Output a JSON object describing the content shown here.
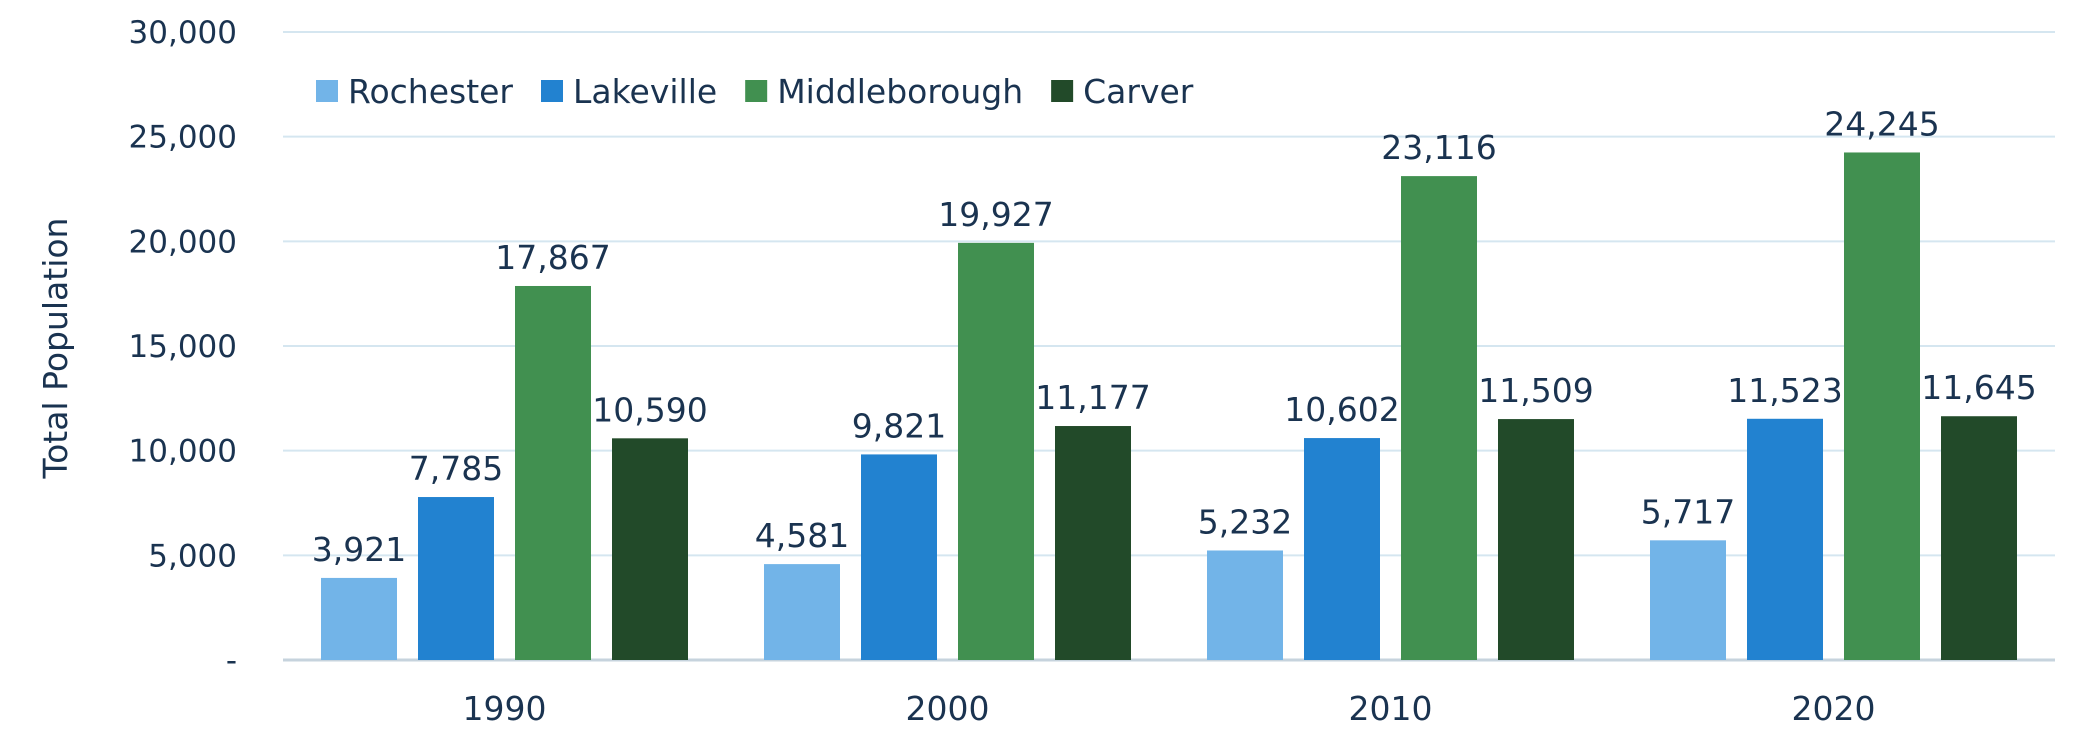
{
  "chart_data": {
    "type": "bar",
    "title": "",
    "xlabel": "",
    "ylabel": "Total Population",
    "categories": [
      "1990",
      "2000",
      "2010",
      "2020"
    ],
    "series": [
      {
        "name": "Rochester",
        "color": "#72b4e8",
        "values": [
          3921,
          4581,
          5232,
          5717
        ],
        "labels": [
          "3,921",
          "4,581",
          "5,232",
          "5,717"
        ]
      },
      {
        "name": "Lakeville",
        "color": "#2282d0",
        "values": [
          7785,
          9821,
          10602,
          11523
        ],
        "labels": [
          "7,785",
          "9,821",
          "10,602",
          "11,523"
        ]
      },
      {
        "name": "Middleborough",
        "color": "#419050",
        "values": [
          17867,
          19927,
          23116,
          24245
        ],
        "labels": [
          "17,867",
          "19,927",
          "23,116",
          "24,245"
        ]
      },
      {
        "name": "Carver",
        "color": "#224a29",
        "values": [
          10590,
          11177,
          11509,
          11645
        ],
        "labels": [
          "10,590",
          "11,177",
          "11,509",
          "11,645"
        ]
      }
    ],
    "ylim": [
      0,
      30000
    ],
    "yticks": [
      0,
      5000,
      10000,
      15000,
      20000,
      25000,
      30000
    ],
    "ytick_labels": [
      "-",
      "5,000",
      "10,000",
      "15,000",
      "20,000",
      "25,000",
      "30,000"
    ],
    "grid": true,
    "legend_position": "top-left"
  }
}
